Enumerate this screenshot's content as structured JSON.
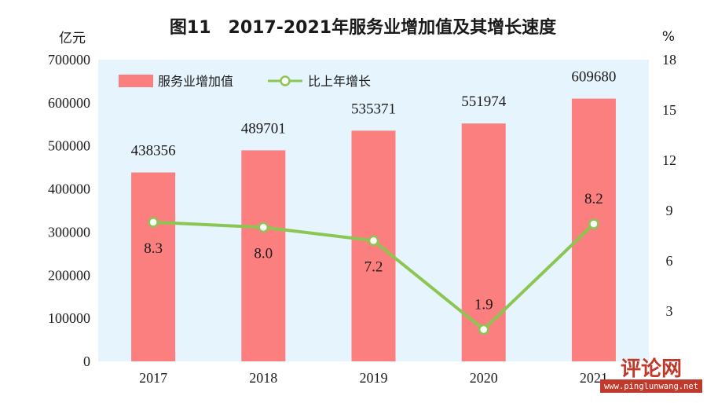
{
  "chart_data": {
    "type": "bar+line",
    "title": "图11　2017-2021年服务业增加值及其增长速度",
    "categories": [
      "2017",
      "2018",
      "2019",
      "2020",
      "2021"
    ],
    "series": [
      {
        "name": "服务业增加值",
        "type": "bar",
        "axis": "left",
        "unit": "亿元",
        "values": [
          438356,
          489701,
          535371,
          551974,
          609680
        ],
        "color": "#fb7f7f"
      },
      {
        "name": "比上年增长",
        "type": "line",
        "axis": "right",
        "unit": "%",
        "values": [
          8.3,
          8.0,
          7.2,
          1.9,
          8.2
        ],
        "labels": [
          "8.3",
          "8.0",
          "7.2",
          "1.9",
          "8.2"
        ],
        "color": "#8cc652"
      }
    ],
    "left_axis": {
      "unit_label": "亿元",
      "ylim": [
        0,
        700000
      ],
      "ticks": [
        0,
        100000,
        200000,
        300000,
        400000,
        500000,
        600000,
        700000
      ]
    },
    "right_axis": {
      "unit_label": "%",
      "ylim": [
        0,
        18
      ],
      "ticks": [
        3,
        6,
        9,
        12,
        15,
        18
      ]
    },
    "plot_background": "#e6f4fd",
    "legend_placement": "top-left",
    "grid": false
  },
  "watermark": {
    "name": "评论网",
    "url": "www.pinglunwang.net"
  }
}
